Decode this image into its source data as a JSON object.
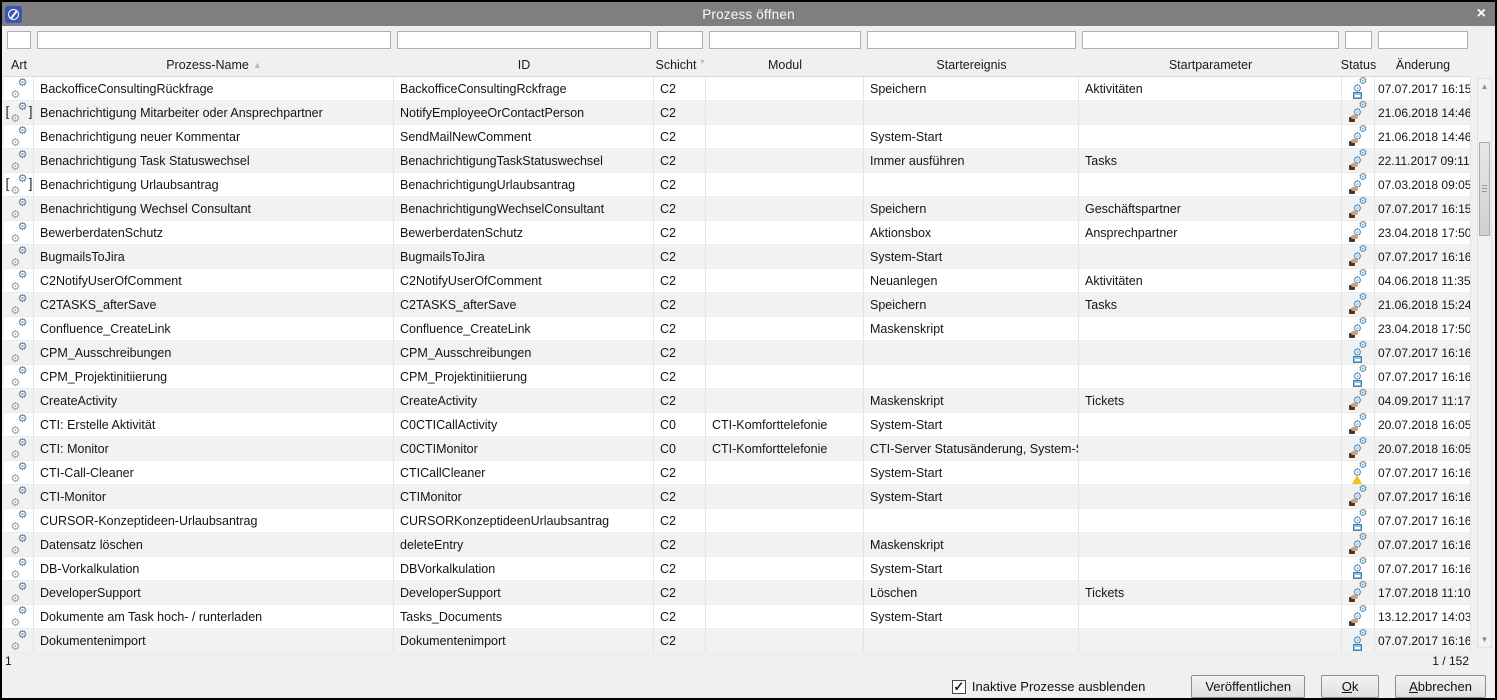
{
  "window": {
    "title": "Prozess öffnen",
    "close_glyph": "×"
  },
  "table": {
    "columns": [
      {
        "key": "art",
        "label": "Art"
      },
      {
        "key": "name",
        "label": "Prozess-Name",
        "sort": "asc"
      },
      {
        "key": "id",
        "label": "ID"
      },
      {
        "key": "schicht",
        "label": "Schicht",
        "sort": "secondary"
      },
      {
        "key": "modul",
        "label": "Modul"
      },
      {
        "key": "startereignis",
        "label": "Startereignis"
      },
      {
        "key": "startparameter",
        "label": "Startparameter"
      },
      {
        "key": "status",
        "label": "Status"
      },
      {
        "key": "aenderung",
        "label": "Änderung"
      }
    ],
    "rows": [
      {
        "art": "gear",
        "name": "BackofficeConsultingRückfrage",
        "id": "BackofficeConsultingRckfrage",
        "schicht": "C2",
        "modul": "",
        "startereignis": "Speichern",
        "startparameter": "Aktivitäten",
        "status": "disk",
        "aenderung": "07.07.2017 16:15"
      },
      {
        "art": "gear-bracket",
        "name": "Benachrichtigung Mitarbeiter oder Ansprechpartner",
        "id": "NotifyEmployeeOrContactPerson",
        "schicht": "C2",
        "modul": "",
        "startereignis": "",
        "startparameter": "",
        "status": "hand",
        "aenderung": "21.06.2018 14:46"
      },
      {
        "art": "gear",
        "name": "Benachrichtigung neuer Kommentar",
        "id": "SendMailNewComment",
        "schicht": "C2",
        "modul": "",
        "startereignis": "System-Start",
        "startparameter": "",
        "status": "hand",
        "aenderung": "21.06.2018 14:46"
      },
      {
        "art": "gear",
        "name": "Benachrichtigung Task Statuswechsel",
        "id": "BenachrichtigungTaskStatuswechsel",
        "schicht": "C2",
        "modul": "",
        "startereignis": "Immer ausführen",
        "startparameter": "Tasks",
        "status": "hand",
        "aenderung": "22.11.2017 09:11"
      },
      {
        "art": "gear-bracket",
        "name": "Benachrichtigung Urlaubsantrag",
        "id": "BenachrichtigungUrlaubsantrag",
        "schicht": "C2",
        "modul": "",
        "startereignis": "",
        "startparameter": "",
        "status": "hand",
        "aenderung": "07.03.2018 09:05"
      },
      {
        "art": "gear",
        "name": "Benachrichtigung Wechsel Consultant",
        "id": "BenachrichtigungWechselConsultant",
        "schicht": "C2",
        "modul": "",
        "startereignis": "Speichern",
        "startparameter": "Geschäftspartner",
        "status": "hand",
        "aenderung": "07.07.2017 16:15"
      },
      {
        "art": "gear",
        "name": "BewerberdatenSchutz",
        "id": "BewerberdatenSchutz",
        "schicht": "C2",
        "modul": "",
        "startereignis": "Aktionsbox",
        "startparameter": "Ansprechpartner",
        "status": "hand",
        "aenderung": "23.04.2018 17:50"
      },
      {
        "art": "gear",
        "name": "BugmailsToJira",
        "id": "BugmailsToJira",
        "schicht": "C2",
        "modul": "",
        "startereignis": "System-Start",
        "startparameter": "",
        "status": "hand",
        "aenderung": "07.07.2017 16:16"
      },
      {
        "art": "gear",
        "name": "C2NotifyUserOfComment",
        "id": "C2NotifyUserOfComment",
        "schicht": "C2",
        "modul": "",
        "startereignis": "Neuanlegen",
        "startparameter": "Aktivitäten",
        "status": "hand",
        "aenderung": "04.06.2018 11:35"
      },
      {
        "art": "gear",
        "name": "C2TASKS_afterSave",
        "id": "C2TASKS_afterSave",
        "schicht": "C2",
        "modul": "",
        "startereignis": "Speichern",
        "startparameter": "Tasks",
        "status": "hand",
        "aenderung": "21.06.2018 15:24"
      },
      {
        "art": "gear",
        "name": "Confluence_CreateLink",
        "id": "Confluence_CreateLink",
        "schicht": "C2",
        "modul": "",
        "startereignis": "Maskenskript",
        "startparameter": "",
        "status": "hand",
        "aenderung": "23.04.2018 17:50"
      },
      {
        "art": "gear",
        "name": "CPM_Ausschreibungen",
        "id": "CPM_Ausschreibungen",
        "schicht": "C2",
        "modul": "",
        "startereignis": "",
        "startparameter": "",
        "status": "disk",
        "aenderung": "07.07.2017 16:16"
      },
      {
        "art": "gear",
        "name": "CPM_Projektinitiierung",
        "id": "CPM_Projektinitiierung",
        "schicht": "C2",
        "modul": "",
        "startereignis": "",
        "startparameter": "",
        "status": "disk",
        "aenderung": "07.07.2017 16:16"
      },
      {
        "art": "gear",
        "name": "CreateActivity",
        "id": "CreateActivity",
        "schicht": "C2",
        "modul": "",
        "startereignis": "Maskenskript",
        "startparameter": "Tickets",
        "status": "hand",
        "aenderung": "04.09.2017 11:17"
      },
      {
        "art": "gear",
        "name": "CTI: Erstelle Aktivität",
        "id": "C0CTICallActivity",
        "schicht": "C0",
        "modul": "CTI-Komforttelefonie",
        "startereignis": "System-Start",
        "startparameter": "",
        "status": "hand",
        "aenderung": "20.07.2018 16:05"
      },
      {
        "art": "gear",
        "name": "CTI: Monitor",
        "id": "C0CTIMonitor",
        "schicht": "C0",
        "modul": "CTI-Komforttelefonie",
        "startereignis": "CTI-Server Statusänderung, System-St...",
        "startparameter": "",
        "status": "hand",
        "aenderung": "20.07.2018 16:05"
      },
      {
        "art": "gear",
        "name": "CTI-Call-Cleaner",
        "id": "CTICallCleaner",
        "schicht": "C2",
        "modul": "",
        "startereignis": "System-Start",
        "startparameter": "",
        "status": "warning",
        "aenderung": "07.07.2017 16:16"
      },
      {
        "art": "gear",
        "name": "CTI-Monitor",
        "id": "CTIMonitor",
        "schicht": "C2",
        "modul": "",
        "startereignis": "System-Start",
        "startparameter": "",
        "status": "hand",
        "aenderung": "07.07.2017 16:16"
      },
      {
        "art": "gear",
        "name": "CURSOR-Konzeptideen-Urlaubsantrag",
        "id": "CURSORKonzeptideenUrlaubsantrag",
        "schicht": "C2",
        "modul": "",
        "startereignis": "",
        "startparameter": "",
        "status": "disk",
        "aenderung": "07.07.2017 16:16"
      },
      {
        "art": "gear",
        "name": "Datensatz löschen",
        "id": "deleteEntry",
        "schicht": "C2",
        "modul": "",
        "startereignis": "Maskenskript",
        "startparameter": "",
        "status": "hand",
        "aenderung": "07.07.2017 16:16"
      },
      {
        "art": "gear",
        "name": "DB-Vorkalkulation",
        "id": "DBVorkalkulation",
        "schicht": "C2",
        "modul": "",
        "startereignis": "System-Start",
        "startparameter": "",
        "status": "disk",
        "aenderung": "07.07.2017 16:16"
      },
      {
        "art": "gear",
        "name": "DeveloperSupport",
        "id": "DeveloperSupport",
        "schicht": "C2",
        "modul": "",
        "startereignis": "Löschen",
        "startparameter": "Tickets",
        "status": "hand",
        "aenderung": "17.07.2018 11:10"
      },
      {
        "art": "gear",
        "name": "Dokumente am Task hoch- / runterladen",
        "id": "Tasks_Documents",
        "schicht": "C2",
        "modul": "",
        "startereignis": "System-Start",
        "startparameter": "",
        "status": "hand",
        "aenderung": "13.12.2017 14:03"
      },
      {
        "art": "gear",
        "name": "Dokumentenimport",
        "id": "Dokumentenimport",
        "schicht": "C2",
        "modul": "",
        "startereignis": "",
        "startparameter": "",
        "status": "disk",
        "aenderung": "07.07.2017 16:16"
      }
    ]
  },
  "footer": {
    "selection_count": "1",
    "page_indicator": "1 / 152",
    "checkbox_label": "Inaktive Prozesse ausblenden",
    "checkbox_checked": true,
    "check_glyph": "✓",
    "buttons": [
      {
        "label": "Veröffentlichen"
      },
      {
        "label": "Ok",
        "mnemonic": "O"
      },
      {
        "label": "Abbrechen",
        "mnemonic": "A"
      }
    ]
  },
  "colors": {
    "titlebar": "#7f7f7f",
    "logo_blue": "#3c55b0",
    "row_alt": "#f2f2f2",
    "gear_blue": "#4e86b0",
    "warning_yellow": "#f0c01d",
    "disk_blue": "#86c6e9"
  }
}
